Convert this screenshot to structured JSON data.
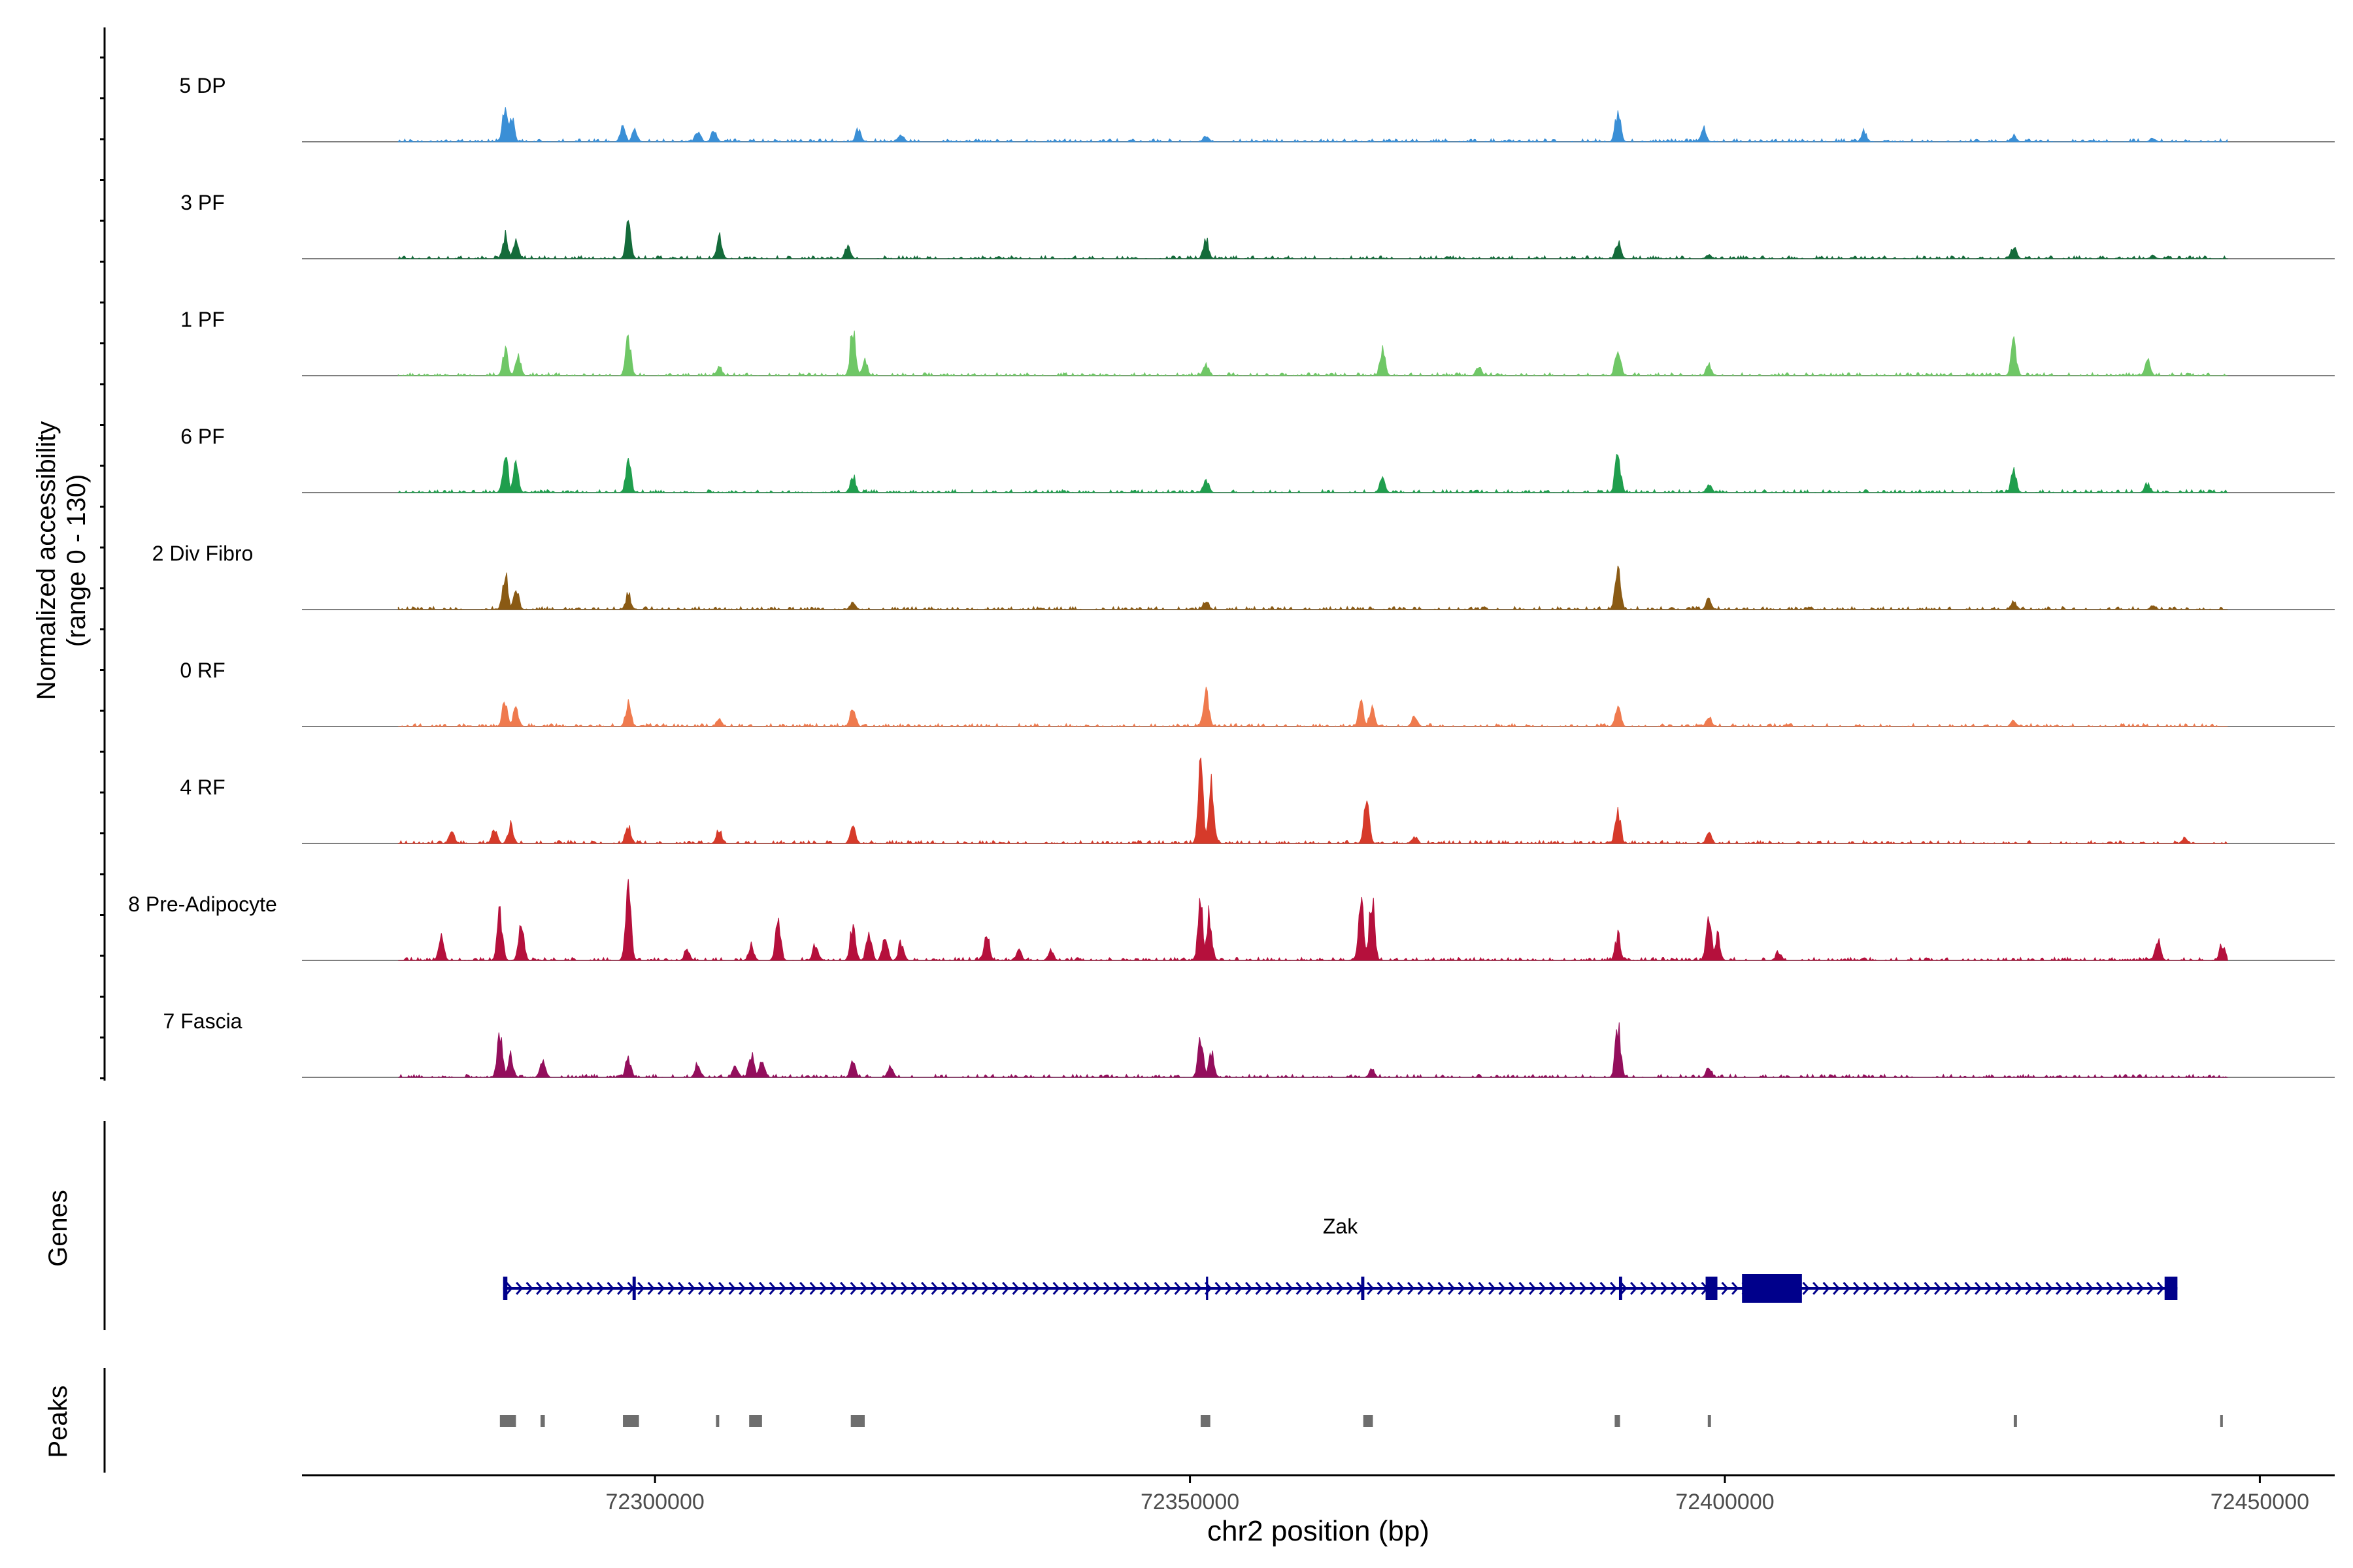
{
  "chart_data": {
    "type": "area",
    "title": "",
    "xlabel": "chr2 position (bp)",
    "ylabel": "Normalized accessibility",
    "ylabel_range": "(range 0 - 130)",
    "y_range": [
      0,
      130
    ],
    "xlim": [
      72267000,
      72457000
    ],
    "xticks": [
      72300000,
      72350000,
      72400000,
      72450000
    ],
    "xtick_labels": [
      "72300000",
      "72350000",
      "72400000",
      "72450000"
    ],
    "data_extent": [
      72276000,
      72447000
    ],
    "tracks": [
      {
        "name": "5 DP",
        "color": "#3a8fd6",
        "peaks": [
          [
            72286000,
            0.42
          ],
          [
            72286600,
            0.3
          ],
          [
            72297000,
            0.2
          ],
          [
            72298100,
            0.16
          ],
          [
            72304000,
            0.15
          ],
          [
            72305500,
            0.14
          ],
          [
            72319000,
            0.16
          ],
          [
            72323000,
            0.1
          ],
          [
            72351500,
            0.08
          ],
          [
            72390000,
            0.38
          ],
          [
            72398000,
            0.18
          ],
          [
            72413000,
            0.14
          ],
          [
            72427000,
            0.08
          ],
          [
            72440000,
            0.05
          ]
        ]
      },
      {
        "name": "3 PF",
        "color": "#146b3a",
        "peaks": [
          [
            72286000,
            0.3
          ],
          [
            72287000,
            0.22
          ],
          [
            72297500,
            0.42
          ],
          [
            72306000,
            0.28
          ],
          [
            72318000,
            0.15
          ],
          [
            72351500,
            0.25
          ],
          [
            72390000,
            0.22
          ],
          [
            72398500,
            0.06
          ],
          [
            72427000,
            0.16
          ],
          [
            72440000,
            0.04
          ]
        ]
      },
      {
        "name": "1 PF",
        "color": "#6fc766",
        "peaks": [
          [
            72286000,
            0.35
          ],
          [
            72287200,
            0.25
          ],
          [
            72297500,
            0.48
          ],
          [
            72306000,
            0.12
          ],
          [
            72318500,
            0.62
          ],
          [
            72319600,
            0.2
          ],
          [
            72351500,
            0.15
          ],
          [
            72368000,
            0.35
          ],
          [
            72377000,
            0.12
          ],
          [
            72390000,
            0.4
          ],
          [
            72398500,
            0.14
          ],
          [
            72427000,
            0.42
          ],
          [
            72439500,
            0.22
          ]
        ]
      },
      {
        "name": "6 PF",
        "color": "#1f9e4d",
        "peaks": [
          [
            72286000,
            0.5
          ],
          [
            72287000,
            0.4
          ],
          [
            72297500,
            0.42
          ],
          [
            72318500,
            0.22
          ],
          [
            72351500,
            0.18
          ],
          [
            72368000,
            0.18
          ],
          [
            72390000,
            0.52
          ],
          [
            72398500,
            0.1
          ],
          [
            72427000,
            0.28
          ],
          [
            72439500,
            0.12
          ]
        ]
      },
      {
        "name": "2 Div Fibro",
        "color": "#8a5a14",
        "peaks": [
          [
            72286000,
            0.45
          ],
          [
            72287000,
            0.3
          ],
          [
            72297500,
            0.2
          ],
          [
            72318500,
            0.1
          ],
          [
            72351500,
            0.12
          ],
          [
            72390000,
            0.52
          ],
          [
            72398500,
            0.14
          ],
          [
            72427000,
            0.1
          ],
          [
            72440000,
            0.06
          ]
        ]
      },
      {
        "name": "0 RF",
        "color": "#ef7a4e",
        "peaks": [
          [
            72286000,
            0.35
          ],
          [
            72287000,
            0.25
          ],
          [
            72297500,
            0.3
          ],
          [
            72306000,
            0.1
          ],
          [
            72318500,
            0.25
          ],
          [
            72351500,
            0.5
          ],
          [
            72366000,
            0.3
          ],
          [
            72367000,
            0.25
          ],
          [
            72371000,
            0.14
          ],
          [
            72390000,
            0.28
          ],
          [
            72398500,
            0.14
          ],
          [
            72427000,
            0.08
          ]
        ]
      },
      {
        "name": "4 RF",
        "color": "#d63a2a",
        "peaks": [
          [
            72281000,
            0.15
          ],
          [
            72285000,
            0.2
          ],
          [
            72286500,
            0.25
          ],
          [
            72297500,
            0.25
          ],
          [
            72306000,
            0.18
          ],
          [
            72318500,
            0.24
          ],
          [
            72351000,
            0.92
          ],
          [
            72352000,
            0.85
          ],
          [
            72366500,
            0.55
          ],
          [
            72371000,
            0.1
          ],
          [
            72390000,
            0.45
          ],
          [
            72398500,
            0.14
          ],
          [
            72443000,
            0.08
          ]
        ]
      },
      {
        "name": "8 Pre-Adipocyte",
        "color": "#b5103c",
        "peaks": [
          [
            72280000,
            0.3
          ],
          [
            72285500,
            0.62
          ],
          [
            72287500,
            0.45
          ],
          [
            72297500,
            0.96
          ],
          [
            72303000,
            0.15
          ],
          [
            72309000,
            0.2
          ],
          [
            72311500,
            0.5
          ],
          [
            72315000,
            0.22
          ],
          [
            72318500,
            0.45
          ],
          [
            72320000,
            0.4
          ],
          [
            72321500,
            0.3
          ],
          [
            72323000,
            0.25
          ],
          [
            72331000,
            0.35
          ],
          [
            72334000,
            0.14
          ],
          [
            72337000,
            0.14
          ],
          [
            72351000,
            0.72
          ],
          [
            72351800,
            0.62
          ],
          [
            72366000,
            0.88
          ],
          [
            72367000,
            0.8
          ],
          [
            72390000,
            0.32
          ],
          [
            72398500,
            0.7
          ],
          [
            72399300,
            0.32
          ],
          [
            72405000,
            0.12
          ],
          [
            72440500,
            0.3
          ],
          [
            72446500,
            0.22
          ]
        ]
      },
      {
        "name": "7 Fascia",
        "color": "#930e5c",
        "peaks": [
          [
            72285500,
            0.55
          ],
          [
            72286500,
            0.28
          ],
          [
            72289500,
            0.25
          ],
          [
            72297500,
            0.26
          ],
          [
            72304000,
            0.18
          ],
          [
            72307500,
            0.16
          ],
          [
            72309000,
            0.3
          ],
          [
            72310000,
            0.22
          ],
          [
            72318500,
            0.2
          ],
          [
            72322000,
            0.15
          ],
          [
            72351000,
            0.45
          ],
          [
            72352000,
            0.32
          ],
          [
            72367000,
            0.1
          ],
          [
            72390000,
            0.68
          ],
          [
            72398500,
            0.14
          ]
        ]
      }
    ],
    "genes": [
      {
        "name": "Zak",
        "strand": "+",
        "color": "#00008b",
        "start": 72285800,
        "end": 72442300,
        "exons": [
          [
            72285800,
            72286200
          ],
          [
            72297900,
            72298200
          ],
          [
            72351500,
            72351700
          ],
          [
            72366000,
            72366300
          ],
          [
            72390100,
            72390400
          ],
          [
            72398200,
            72399300
          ],
          [
            72401600,
            72407200
          ],
          [
            72441100,
            72442300
          ]
        ]
      }
    ],
    "peak_regions": [
      [
        72285500,
        72287000
      ],
      [
        72289300,
        72289700
      ],
      [
        72297000,
        72298500
      ],
      [
        72305700,
        72306000
      ],
      [
        72308800,
        72310000
      ],
      [
        72318300,
        72319600
      ],
      [
        72351000,
        72351900
      ],
      [
        72366200,
        72367100
      ],
      [
        72389700,
        72390200
      ],
      [
        72398400,
        72398700
      ],
      [
        72427000,
        72427300
      ],
      [
        72446300,
        72446500
      ]
    ],
    "panel_labels": {
      "genes": "Genes",
      "peaks": "Peaks"
    }
  }
}
